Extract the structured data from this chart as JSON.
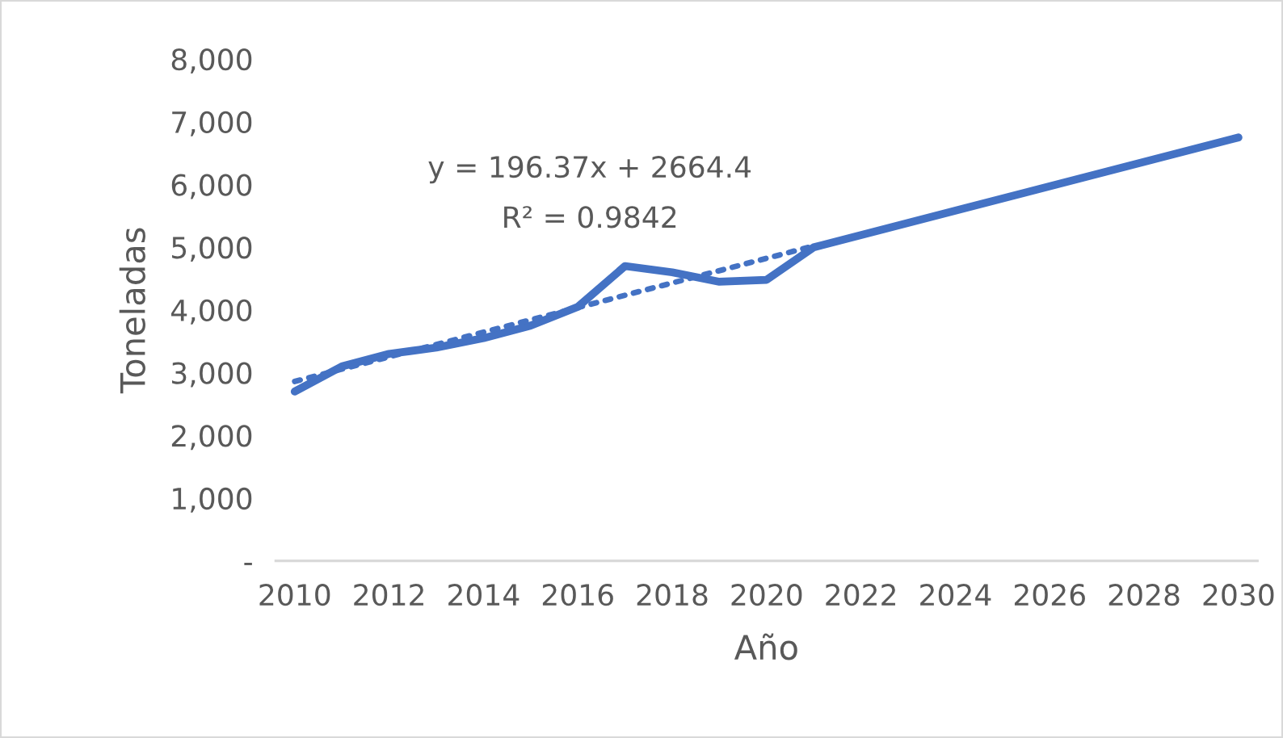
{
  "chart_data": {
    "type": "line",
    "xlabel": "Año",
    "ylabel": "Toneladas",
    "series": [
      {
        "color": "#4472c4",
        "x": [
          2010,
          2011,
          2012,
          2013,
          2014,
          2015,
          2016,
          2017,
          2018,
          2019,
          2020,
          2021,
          2030
        ],
        "values": [
          2700,
          3100,
          3300,
          3400,
          3550,
          3750,
          4050,
          4700,
          4600,
          4450,
          4480,
          5000,
          6750
        ],
        "line_style": "solid"
      },
      {
        "type": "line",
        "color": "#4472c4",
        "x": [
          2010,
          2021
        ],
        "values": [
          2860,
          5020
        ],
        "line_style": "dotted"
      }
    ],
    "annotations": [
      "y = 196.37x + 2664.4",
      "R² = 0.9842"
    ],
    "xlim": [
      2009.6,
      2030.4
    ],
    "xticks": [
      2010,
      2012,
      2014,
      2016,
      2018,
      2020,
      2022,
      2024,
      2026,
      2028,
      2030
    ],
    "ylim": [
      0,
      8000
    ],
    "yticks": [
      {
        "value": 0,
        "label": "-"
      },
      {
        "value": 1000,
        "label": "1,000"
      },
      {
        "value": 2000,
        "label": "2,000"
      },
      {
        "value": 3000,
        "label": "3,000"
      },
      {
        "value": 4000,
        "label": "4,000"
      },
      {
        "value": 5000,
        "label": "5,000"
      },
      {
        "value": 6000,
        "label": "6,000"
      },
      {
        "value": 7000,
        "label": "7,000"
      },
      {
        "value": 8000,
        "label": "8,000"
      }
    ],
    "grid": false,
    "legend": false
  }
}
